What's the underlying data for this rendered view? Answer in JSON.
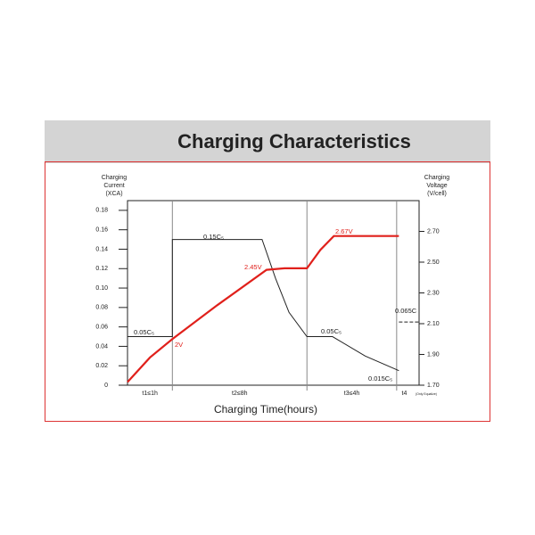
{
  "header": {
    "title": "Charging Characteristics"
  },
  "chart_data": {
    "type": "line",
    "x_label": "Charging Time(hours)",
    "y_label": [
      "Charging",
      "Current",
      "(XCA)"
    ],
    "y2_label": [
      "Charging",
      "Voltage",
      "(V/cell)"
    ],
    "xlim": [
      0,
      6.5
    ],
    "xticks": [
      1,
      4,
      6
    ],
    "phases": [
      "t1≤1h",
      "t2≤8h",
      "t3≤4h",
      "t4"
    ],
    "phase_note": "(Only Equalize)",
    "ylim": [
      0,
      0.19
    ],
    "yticks": [
      0,
      0.02,
      0.04,
      0.06,
      0.08,
      {
        "value": 0.1,
        "label": "0.10"
      },
      0.12,
      0.14,
      0.16,
      0.18
    ],
    "y2lim": [
      1.7,
      2.9
    ],
    "y2ticks": [
      {
        "value": 1.7,
        "label": "1.70"
      },
      {
        "value": 1.9,
        "label": "1.90"
      },
      {
        "value": 2.1,
        "label": "2.10"
      },
      {
        "value": 2.3,
        "label": "2.30"
      },
      {
        "value": 2.5,
        "label": "2.50"
      },
      {
        "value": 2.7,
        "label": "2.70"
      }
    ],
    "series": [
      {
        "color": "#222222",
        "x": [
          0,
          1,
          1,
          3,
          3.3,
          3.6,
          4,
          4.57,
          5.3,
          6.05
        ],
        "values": [
          0.05,
          0.05,
          0.15,
          0.15,
          0.11,
          0.075,
          0.05,
          0.05,
          0.03,
          0.015
        ]
      },
      {
        "color": "#222222",
        "dash": true,
        "x": [
          6.05,
          6.5
        ],
        "values": [
          0.065,
          0.065
        ]
      },
      {
        "color": "#e0201b",
        "axis": "y2",
        "x": [
          0,
          0.5,
          1,
          2,
          3.1,
          3.5,
          4,
          4.3,
          4.6,
          6.05
        ],
        "values": [
          1.72,
          1.88,
          2.0,
          2.22,
          2.45,
          2.46,
          2.46,
          2.58,
          2.67,
          2.67
        ]
      }
    ],
    "annotations": [
      {
        "text": "0.05C₅",
        "color": "#222222"
      },
      {
        "text": "0.15C₅",
        "color": "#222222"
      },
      {
        "text": "0.05C₅",
        "color": "#222222"
      },
      {
        "text": "0.015C₅",
        "color": "#222222"
      },
      {
        "text": "0.065C",
        "color": "#222222"
      },
      {
        "text": "2V",
        "color": "#e0201b"
      },
      {
        "text": "2.45V",
        "color": "#e0201b"
      },
      {
        "text": "2.67V",
        "color": "#e0201b"
      }
    ]
  }
}
